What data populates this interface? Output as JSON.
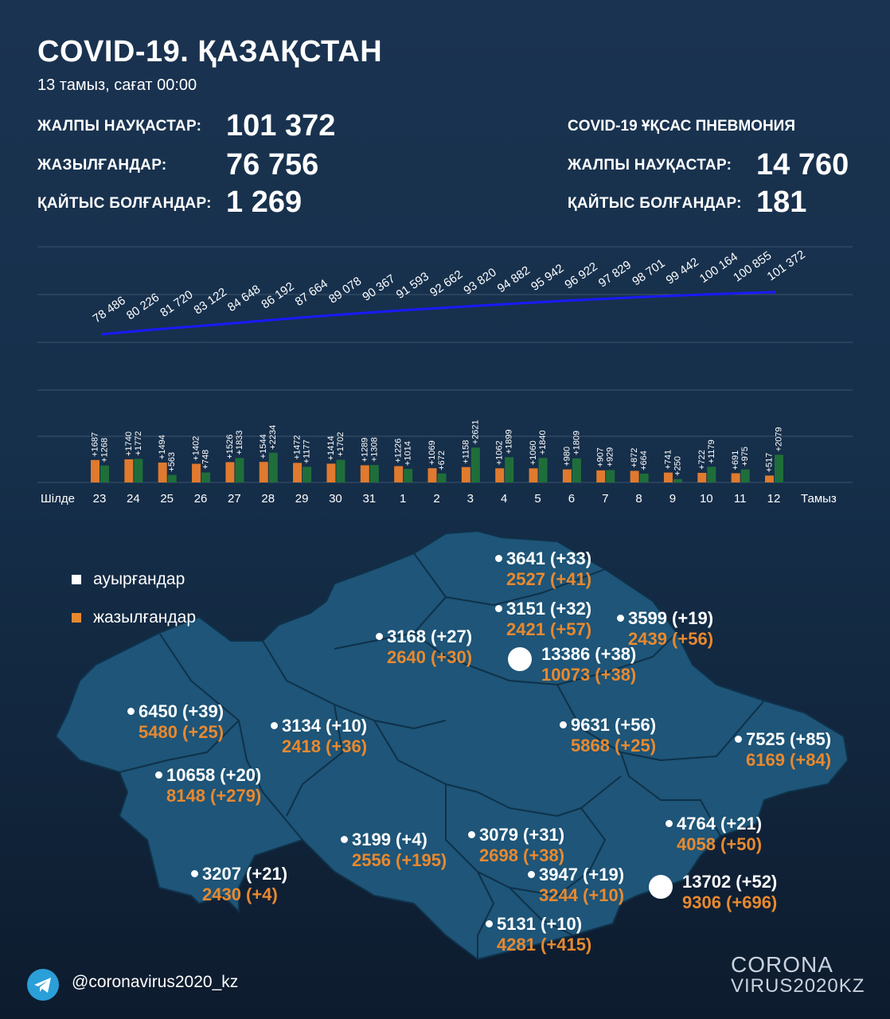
{
  "header": {
    "title": "COVID-19. ҚАЗАҚСТАН",
    "date": "13 тамыз, сағат 00:00"
  },
  "stats": {
    "total_label": "ЖАЛПЫ НАУҚАСТАР:",
    "total_value": "101 372",
    "recovered_label": "ЖАЗЫЛҒАНДАР:",
    "recovered_value": "76 756",
    "deaths_label": "ҚАЙТЫС БОЛҒАНДАР:",
    "deaths_value": "1 269"
  },
  "pneumonia": {
    "title": "COVID-19 ҰҚСАС ПНЕВМОНИЯ",
    "total_label": "ЖАЛПЫ НАУҚАСТАР:",
    "total_value": "14 760",
    "deaths_label": "ҚАЙТЫС БОЛҒАНДАР:",
    "deaths_value": "181"
  },
  "colors": {
    "line": "#1a1aff",
    "infected_bar": "#e07a2e",
    "recovered_bar": "#1f6e3a",
    "region_fill": "#1e5578",
    "region_border": "#0f3149",
    "orange_text": "#e8892f"
  },
  "chart_data": [
    {
      "type": "line",
      "title": "",
      "values": [
        78486,
        80226,
        81720,
        83122,
        84648,
        86192,
        87664,
        89078,
        90367,
        91593,
        92662,
        93820,
        94882,
        95942,
        96922,
        97829,
        98701,
        99442,
        100164,
        100855,
        101372
      ],
      "labels": [
        "78 486",
        "80 226",
        "81 720",
        "83 122",
        "84 648",
        "86 192",
        "87 664",
        "89 078",
        "90 367",
        "91 593",
        "92 662",
        "93 820",
        "94 882",
        "95 942",
        "96 922",
        "97 829",
        "98 701",
        "99 442",
        "100 164",
        "100 855",
        "101 372"
      ]
    },
    {
      "type": "bar",
      "categories": [
        "23",
        "24",
        "25",
        "26",
        "27",
        "28",
        "29",
        "30",
        "31",
        "1",
        "2",
        "3",
        "4",
        "5",
        "6",
        "7",
        "8",
        "9",
        "10",
        "11",
        "12"
      ],
      "month_left": "Шілде",
      "month_right": "Тамыз",
      "series": [
        {
          "name": "ауырғандар",
          "values": [
            1687,
            1740,
            1494,
            1402,
            1526,
            1544,
            1472,
            1414,
            1289,
            1226,
            1069,
            1158,
            1062,
            1060,
            980,
            907,
            872,
            741,
            722,
            691,
            517
          ]
        },
        {
          "name": "жазылғандар",
          "values": [
            1268,
            1772,
            563,
            748,
            1833,
            2234,
            1177,
            1702,
            1308,
            1014,
            672,
            2621,
            1899,
            1840,
            1809,
            929,
            664,
            250,
            1179,
            975,
            2079
          ]
        }
      ]
    }
  ],
  "legend": {
    "infected": "ауырғандар",
    "recovered": "жазылғандар"
  },
  "map_regions": [
    {
      "cases": "3641 (+33)",
      "recovered": "2527 (+41)"
    },
    {
      "cases": "3151 (+32)",
      "recovered": "2421 (+57)"
    },
    {
      "cases": "3599 (+19)",
      "recovered": "2439 (+56)"
    },
    {
      "cases": "3168 (+27)",
      "recovered": "2640 (+30)"
    },
    {
      "cases": "13386 (+38)",
      "recovered": "10073 (+38)"
    },
    {
      "cases": "6450 (+39)",
      "recovered": "5480 (+25)"
    },
    {
      "cases": "3134 (+10)",
      "recovered": "2418 (+36)"
    },
    {
      "cases": "9631 (+56)",
      "recovered": "5868 (+25)"
    },
    {
      "cases": "7525 (+85)",
      "recovered": "6169 (+84)"
    },
    {
      "cases": "10658 (+20)",
      "recovered": "8148 (+279)"
    },
    {
      "cases": "4764 (+21)",
      "recovered": "4058 (+50)"
    },
    {
      "cases": "3199 (+4)",
      "recovered": "2556 (+195)"
    },
    {
      "cases": "3079 (+31)",
      "recovered": "2698 (+38)"
    },
    {
      "cases": "3947 (+19)",
      "recovered": "3244 (+10)"
    },
    {
      "cases": "13702 (+52)",
      "recovered": "9306 (+696)"
    },
    {
      "cases": "3207 (+21)",
      "recovered": "2430 (+4)"
    },
    {
      "cases": "5131 (+10)",
      "recovered": "4281 (+415)"
    }
  ],
  "footer": {
    "handle": "@coronavirus2020_kz",
    "brand_line1": "CORONA",
    "brand_line2": "VIRUS2020",
    "brand_suffix": "KZ"
  }
}
